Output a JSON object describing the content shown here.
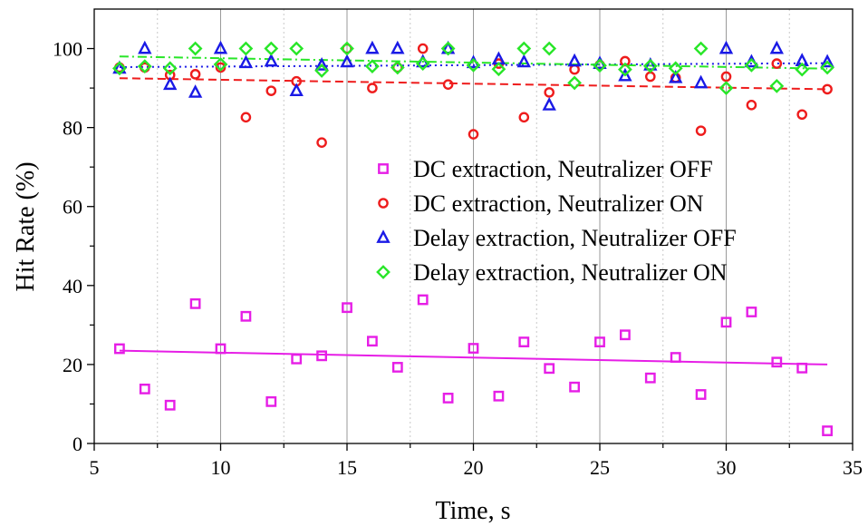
{
  "chart_data": {
    "type": "scatter",
    "title": "",
    "xlabel": "Time, s",
    "ylabel": "Hit Rate (%)",
    "xlim": [
      5,
      35
    ],
    "ylim": [
      0,
      110
    ],
    "x_ticks": [
      5,
      10,
      15,
      20,
      25,
      30,
      35
    ],
    "y_ticks": [
      0,
      20,
      40,
      60,
      80,
      100
    ],
    "grid": "vertical major and minor lines",
    "legend_position": "center-right",
    "x": [
      6,
      7,
      8,
      9,
      10,
      11,
      12,
      13,
      14,
      15,
      16,
      17,
      18,
      19,
      20,
      21,
      22,
      23,
      24,
      25,
      26,
      27,
      28,
      29,
      30,
      31,
      32,
      33,
      34
    ],
    "series": [
      {
        "name": "DC extraction, Neutralizer OFF",
        "marker": "square",
        "color": "#e61ee6",
        "values": [
          24,
          13.8,
          9.7,
          35.4,
          24,
          32.2,
          10.6,
          21.4,
          22.2,
          34.4,
          25.9,
          19.3,
          36.4,
          11.5,
          24.1,
          12,
          25.7,
          19,
          14.3,
          25.7,
          27.5,
          16.6,
          21.8,
          12.4,
          30.7,
          33.3,
          20.6,
          19.1,
          3.2
        ],
        "trend": {
          "style": "solid",
          "y_start": 23.5,
          "y_end": 20
        }
      },
      {
        "name": "DC extraction, Neutralizer ON",
        "marker": "circle",
        "color": "#ee1c1c",
        "values": [
          95.2,
          95.2,
          93.3,
          93.5,
          95.2,
          82.6,
          89.3,
          91.7,
          76.2,
          100,
          90,
          95.2,
          100,
          90.9,
          78.3,
          96.2,
          82.6,
          88.9,
          94.7,
          95.8,
          96.8,
          92.9,
          92.6,
          79.2,
          92.9,
          85.7,
          96.2,
          83.3,
          89.7
        ],
        "trend": {
          "style": "dashed",
          "y_start": 92.5,
          "y_end": 89.7
        }
      },
      {
        "name": "Delay extraction, Neutralizer OFF",
        "marker": "triangle",
        "color": "#1a1ae6",
        "values": [
          95,
          100,
          90.9,
          88.9,
          100,
          96.4,
          96.8,
          89.3,
          95.8,
          96.6,
          100,
          100,
          96.6,
          100,
          96.4,
          97.3,
          96.6,
          85.7,
          96.8,
          96.2,
          93.1,
          95.8,
          92.6,
          91.3,
          100,
          96.6,
          100,
          96.9,
          96.6
        ],
        "trend": {
          "style": "dotted",
          "y_start": 95.3,
          "y_end": 96.3
        }
      },
      {
        "name": "Delay extraction, Neutralizer ON",
        "marker": "diamond",
        "color": "#28e628",
        "values": [
          95,
          95.5,
          95,
          100,
          96,
          100,
          100,
          100,
          94.4,
          100,
          95.5,
          95.2,
          96.2,
          100,
          95.8,
          94.8,
          100,
          100,
          91.3,
          95.7,
          94.7,
          95.6,
          95,
          100,
          90,
          95.8,
          90.5,
          94.7,
          95.2
        ],
        "trend": {
          "style": "dash-dot",
          "y_start": 98,
          "y_end": 94.9
        }
      }
    ]
  }
}
